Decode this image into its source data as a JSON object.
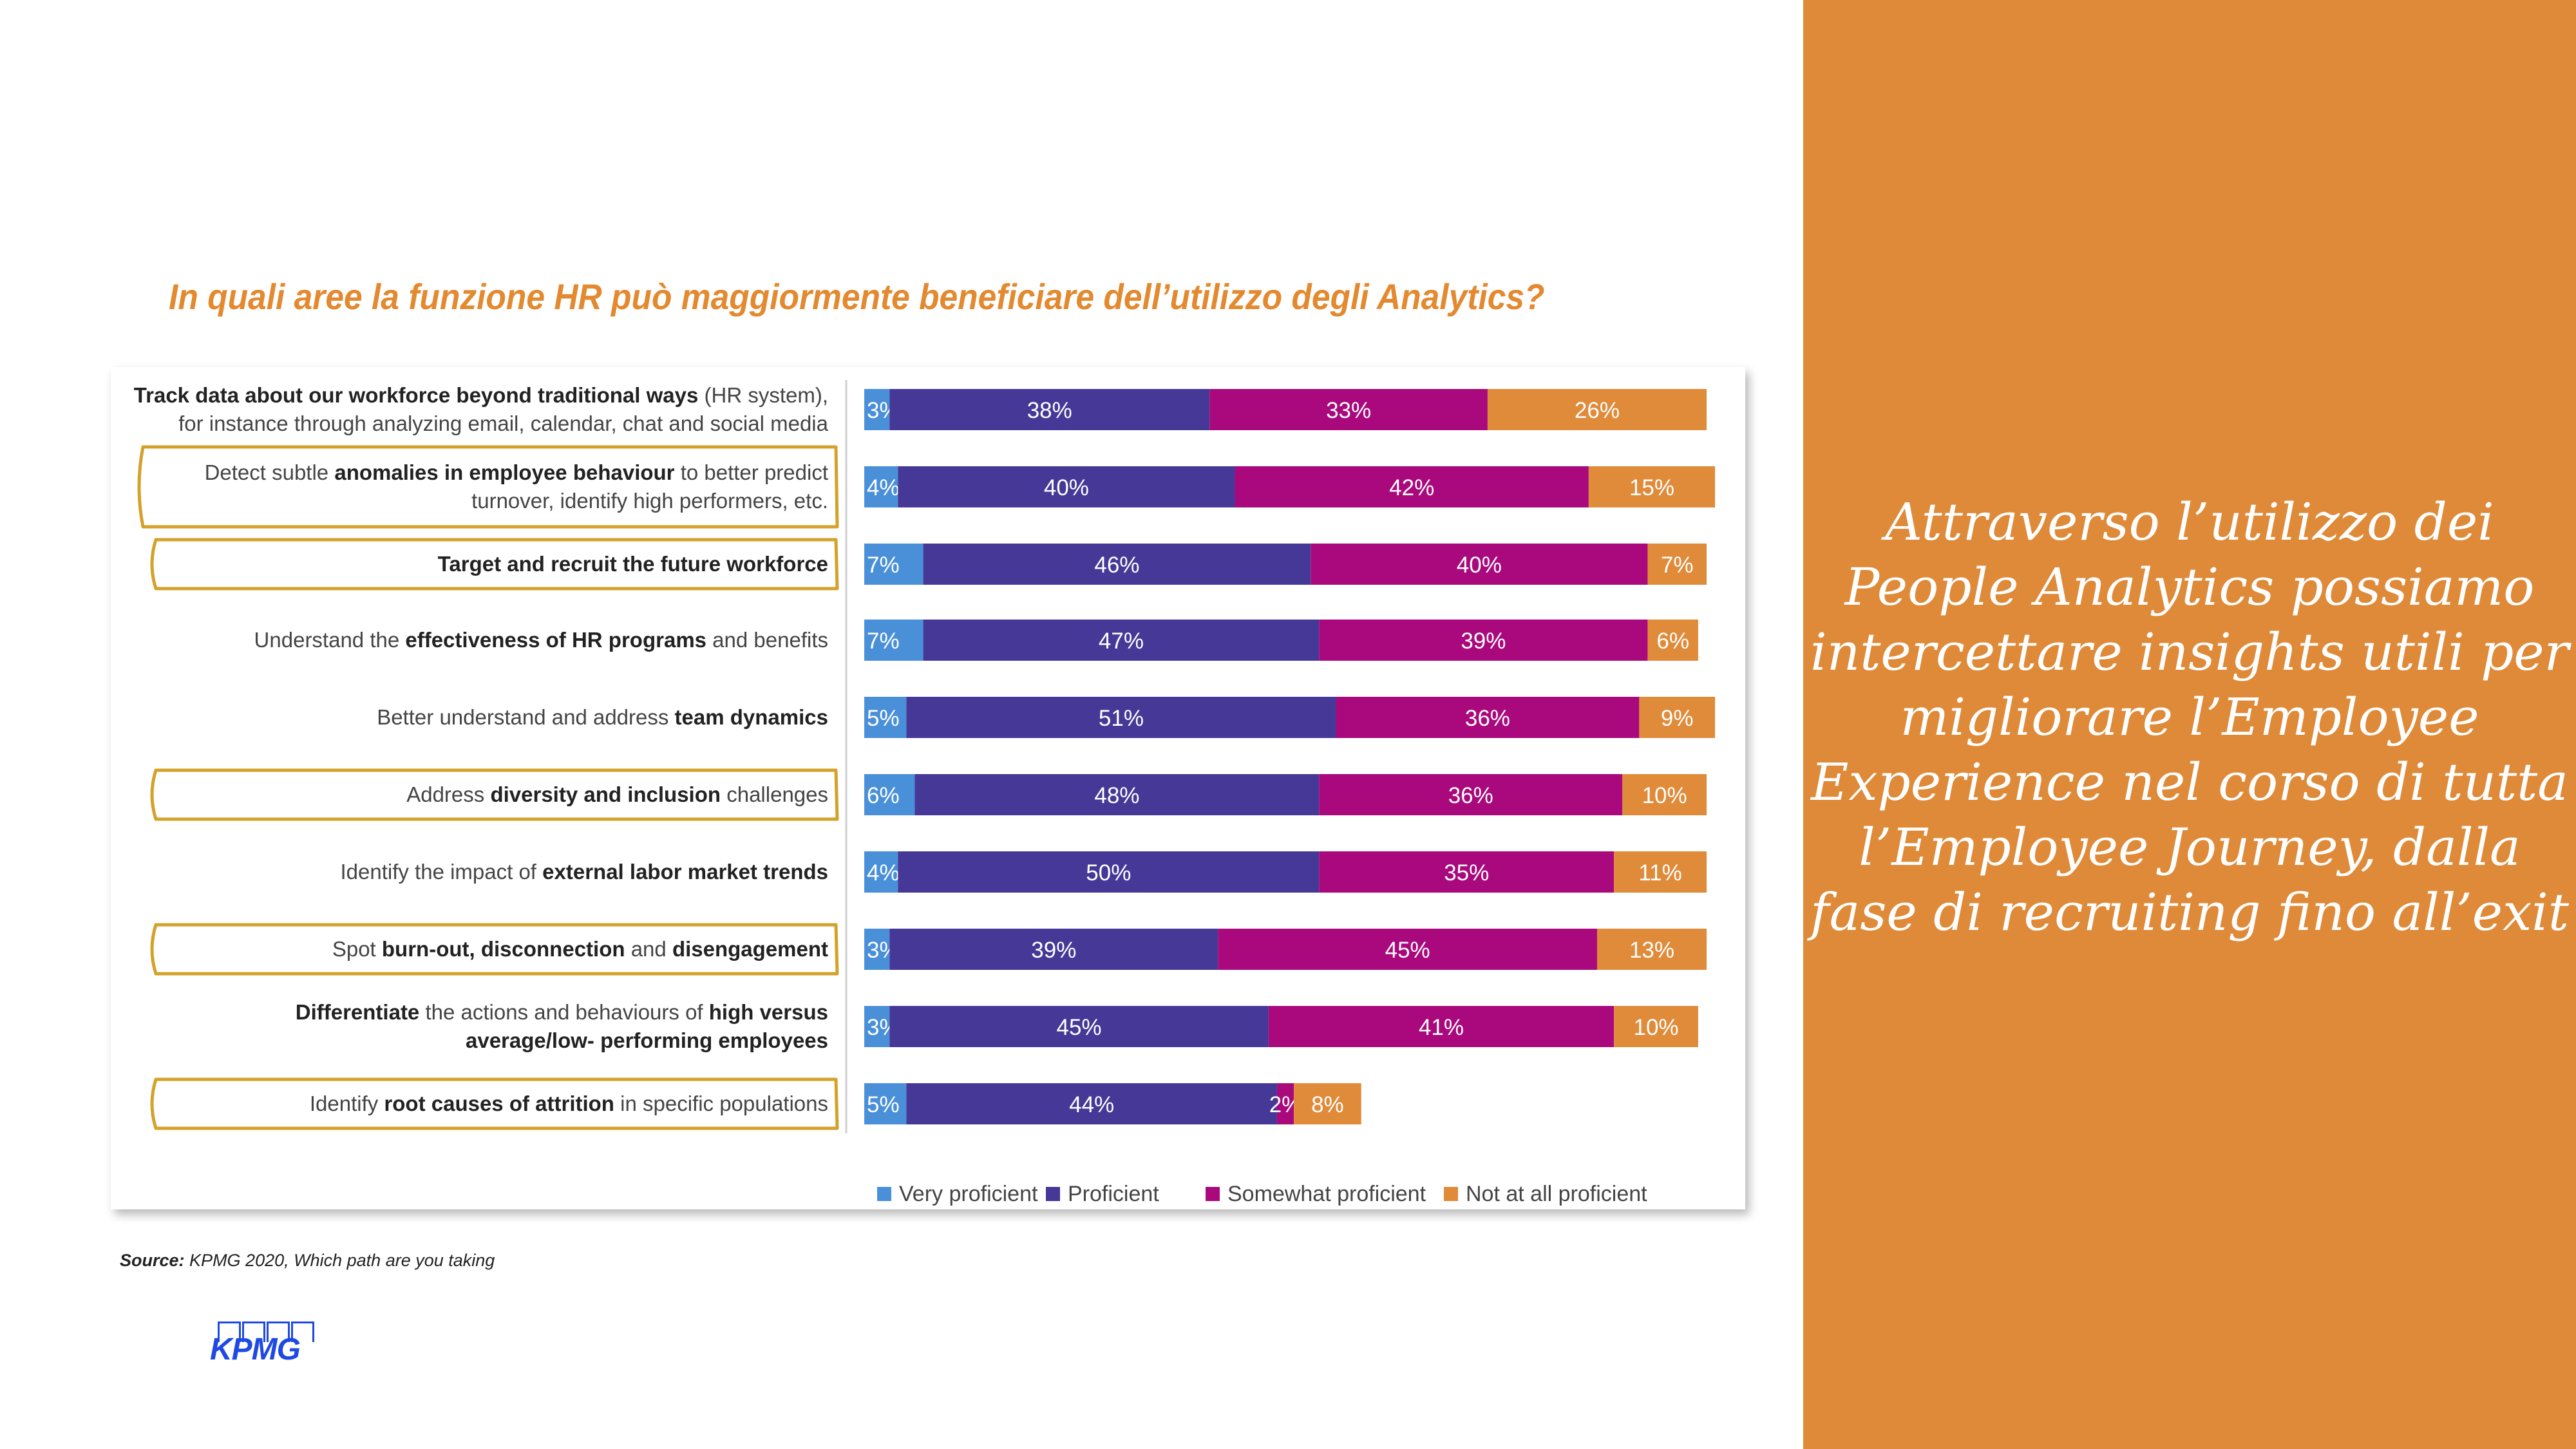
{
  "slide": {
    "title": "In quali aree la funzione HR può maggiormente beneficiare dell’utilizzo degli Analytics?",
    "source_label": "Source:",
    "source_text": "KPMG 2020, Which path are you taking",
    "logo_text": "KPMG",
    "panel_text": "Attraverso l’utilizzo dei People Analytics possiamo intercettare insights utili per migliorare l’Employee Experience nel corso di tutta l’Employee Journey, dalla fase di recruiting fino all’exit",
    "colors": {
      "panel": "#de8a39",
      "title": "#e3892f",
      "highlight_border": "#d4a12a"
    }
  },
  "chart_data": {
    "type": "bar",
    "orientation": "horizontal",
    "stacked": true,
    "title": "",
    "xlabel": "",
    "ylabel": "",
    "legend_position": "bottom",
    "categories": [
      [
        {
          "t": "Track data about our workforce beyond traditional ways",
          "b": true
        },
        {
          "t": " (HR system),",
          "b": false
        },
        {
          "br": true
        },
        {
          "t": "for instance through analyzing email, calendar, chat and social media",
          "b": false
        }
      ],
      [
        {
          "t": "Detect subtle ",
          "b": false
        },
        {
          "t": "anomalies in employee behaviour",
          "b": true
        },
        {
          "t": " to better predict",
          "b": false
        },
        {
          "br": true
        },
        {
          "t": "turnover, identify high performers, etc.",
          "b": false
        }
      ],
      [
        {
          "t": "Target and recruit the future workforce",
          "b": true
        }
      ],
      [
        {
          "t": "Understand the ",
          "b": false
        },
        {
          "t": "effectiveness of HR programs",
          "b": true
        },
        {
          "t": " and benefits",
          "b": false
        }
      ],
      [
        {
          "t": "Better understand and address ",
          "b": false
        },
        {
          "t": "team dynamics",
          "b": true
        }
      ],
      [
        {
          "t": "Address ",
          "b": false
        },
        {
          "t": "diversity and inclusion",
          "b": true
        },
        {
          "t": " challenges",
          "b": false
        }
      ],
      [
        {
          "t": "Identify the impact of ",
          "b": false
        },
        {
          "t": "external labor market trends",
          "b": true
        }
      ],
      [
        {
          "t": "Spot ",
          "b": false
        },
        {
          "t": "burn-out, disconnection",
          "b": true
        },
        {
          "t": " and ",
          "b": false
        },
        {
          "t": "disengagement",
          "b": true
        }
      ],
      [
        {
          "t": "Differentiate",
          "b": true
        },
        {
          "t": " the actions and behaviours of ",
          "b": false
        },
        {
          "t": "high versus",
          "b": true
        },
        {
          "br": true
        },
        {
          "t": "average/low- performing employees",
          "b": true
        }
      ],
      [
        {
          "t": "Identify ",
          "b": false
        },
        {
          "t": "root causes of attrition",
          "b": true
        },
        {
          "t": " in specific populations",
          "b": false
        }
      ]
    ],
    "highlighted": [
      false,
      true,
      true,
      false,
      false,
      true,
      false,
      true,
      false,
      true
    ],
    "series": [
      {
        "name": "Very proficient",
        "color": "#4a90d9",
        "values": [
          3,
          4,
          7,
          7,
          5,
          6,
          4,
          3,
          3,
          5
        ],
        "labels": [
          "3%",
          "4%",
          "7%",
          "7%",
          "5%",
          "6%",
          "4%",
          "3%",
          "3%",
          "5%"
        ]
      },
      {
        "name": "Proficient",
        "color": "#463897",
        "values": [
          38,
          40,
          46,
          47,
          51,
          48,
          50,
          39,
          45,
          44
        ],
        "labels": [
          "38%",
          "40%",
          "46%",
          "47%",
          "51%",
          "48%",
          "50%",
          "39%",
          "45%",
          "44%"
        ]
      },
      {
        "name": "Somewhat proficient",
        "color": "#a9097c",
        "values": [
          33,
          42,
          40,
          39,
          36,
          36,
          35,
          45,
          41,
          2
        ],
        "labels": [
          "33%",
          "42%",
          "40%",
          "39%",
          "36%",
          "36%",
          "35%",
          "45%",
          "41%",
          "2%"
        ]
      },
      {
        "name": "Not at all proficient",
        "color": "#e08b3a",
        "values": [
          26,
          15,
          7,
          6,
          9,
          10,
          11,
          13,
          10,
          8
        ],
        "labels": [
          "26%",
          "15%",
          "7%",
          "6%",
          "9%",
          "10%",
          "11%",
          "13%",
          "10%",
          "8%"
        ]
      }
    ]
  }
}
